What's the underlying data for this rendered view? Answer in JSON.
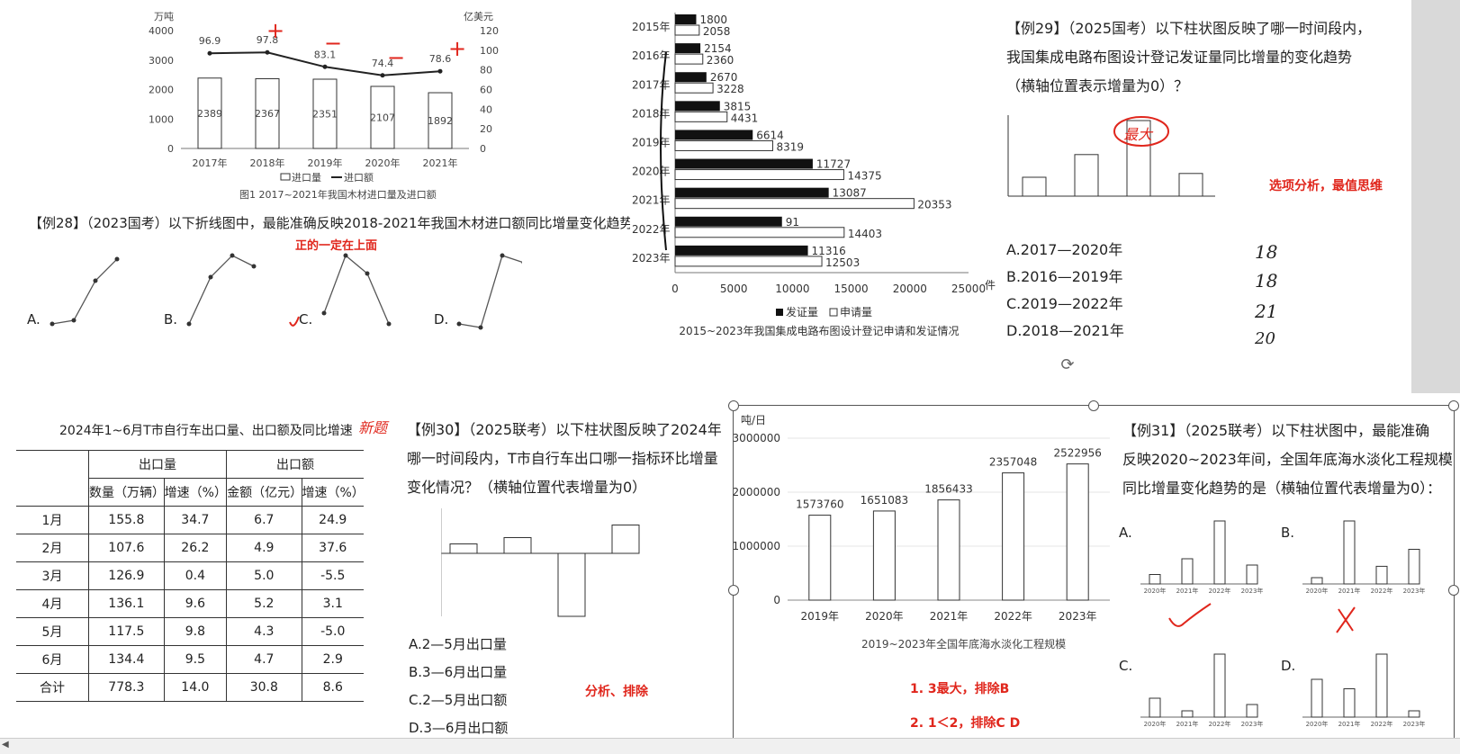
{
  "chart_data": [
    {
      "type": "bar",
      "title": "图1  2017~2021年我国木材进口量及进口额",
      "categories": [
        "2017年",
        "2018年",
        "2019年",
        "2020年",
        "2021年"
      ],
      "series": [
        {
          "name": "进口量",
          "type": "bar",
          "values": [
            2389,
            2367,
            2351,
            2107,
            1892
          ]
        },
        {
          "name": "进口额",
          "type": "line",
          "values": [
            96.9,
            97.8,
            83.1,
            74.4,
            78.6
          ]
        }
      ],
      "ylabel": "万吨",
      "y2label": "亿美元",
      "ylim": [
        0,
        4000
      ],
      "y2lim": [
        0,
        120
      ],
      "yticks": [
        "4000",
        "3000",
        "2000",
        "1000",
        "0"
      ],
      "y2ticks": [
        "120",
        "100",
        "80",
        "60",
        "40",
        "20",
        "0"
      ]
    },
    {
      "type": "bar",
      "orientation": "horizontal",
      "title": "2015~2023年我国集成电路布图设计登记申请和发证情况",
      "categories": [
        "2015年",
        "2016年",
        "2017年",
        "2018年",
        "2019年",
        "2020年",
        "2021年",
        "2022年",
        "2023年"
      ],
      "series": [
        {
          "name": "发证量",
          "values": [
            1800,
            2154,
            2670,
            3815,
            6614,
            11727,
            13087,
            9106,
            11316
          ]
        },
        {
          "name": "申请量",
          "values": [
            2058,
            2360,
            3228,
            4431,
            8319,
            14375,
            20353,
            14403,
            12503
          ]
        }
      ],
      "xlim": [
        0,
        25000
      ],
      "xticks": [
        "0",
        "5000",
        "10000",
        "15000",
        "20000",
        "25000"
      ],
      "unit": "件",
      "visible_labels_2022": "91"
    },
    {
      "type": "table",
      "title": "2024年1~6月T市自行车出口量、出口额及同比增速",
      "groups": [
        "出口量",
        "出口额"
      ],
      "columns": [
        "数量（万辆）",
        "增速（%）",
        "金额（亿元）",
        "增速（%）"
      ],
      "rows": [
        {
          "month": "1月",
          "values": [
            "155.8",
            "34.7",
            "6.7",
            "24.9"
          ]
        },
        {
          "month": "2月",
          "values": [
            "107.6",
            "26.2",
            "4.9",
            "37.6"
          ]
        },
        {
          "month": "3月",
          "values": [
            "126.9",
            "0.4",
            "5.0",
            "-5.5"
          ]
        },
        {
          "month": "4月",
          "values": [
            "136.1",
            "9.6",
            "5.2",
            "3.1"
          ]
        },
        {
          "month": "5月",
          "values": [
            "117.5",
            "9.8",
            "4.3",
            "-5.0"
          ]
        },
        {
          "month": "6月",
          "values": [
            "134.4",
            "9.5",
            "4.7",
            "2.9"
          ]
        },
        {
          "month": "合计",
          "values": [
            "778.3",
            "14.0",
            "30.8",
            "8.6"
          ]
        }
      ]
    },
    {
      "type": "bar",
      "title": "2019~2023年全国年底海水淡化工程规模",
      "categories": [
        "2019年",
        "2020年",
        "2021年",
        "2022年",
        "2023年"
      ],
      "values": [
        1573760,
        1651083,
        1856433,
        2357048,
        2522956
      ],
      "ylabel": "吨/日",
      "ylim": [
        0,
        3000000
      ],
      "yticks": [
        "3000000",
        "2000000",
        "1000000",
        "0"
      ]
    }
  ],
  "q28": {
    "text": "【例28】（2023国考）以下折线图中，最能准确反映2018-2021年我国木材进口额同比增量变化趋势的是：",
    "note": "正的一定在上面",
    "options": [
      "A.",
      "B.",
      "C.",
      "D."
    ],
    "marks": [
      "+",
      "−",
      "−",
      "+"
    ],
    "shapes": [
      [
        0.95,
        0.9,
        0.35,
        0.05
      ],
      [
        0.95,
        0.3,
        0.0,
        0.15
      ],
      [
        0.8,
        0.0,
        0.25,
        0.95
      ],
      [
        0.95,
        1.0,
        0.0,
        0.1
      ]
    ]
  },
  "q29": {
    "lines": [
      "【例29】（2025国考）以下柱状图反映了哪一时间段内，",
      "我国集成电路布图设计登记发证量同比增量的变化趋势",
      "（横轴位置表示增量为0）？"
    ],
    "options": [
      "A.2017—2020年",
      "B.2016—2019年",
      "C.2019—2022年",
      "D.2018—2021年"
    ],
    "note": "选项分析，最值思维",
    "annot_max": "最大",
    "handwritten": [
      "18",
      "18",
      "21",
      "20"
    ],
    "bars": [
      0.25,
      0.55,
      1.0,
      0.3
    ]
  },
  "q30": {
    "tag": "新题",
    "lines": [
      "【例30】（2025联考）以下柱状图反映了2024年",
      "哪一时间段内，T市自行车出口哪一指标环比增量",
      "变化情况？（横轴位置代表增量为0）"
    ],
    "options": [
      "A.2—5月出口量",
      "B.3—6月出口量",
      "C.2—5月出口额",
      "D.3—6月出口额"
    ],
    "note": "分析、排除",
    "bars": [
      0.15,
      0.25,
      -1.0,
      0.45
    ]
  },
  "q31": {
    "lines": [
      "【例31】（2025联考）以下柱状图中，最能准确",
      "反映2020~2023年间，全国年底海水淡化工程规模",
      "同比增量变化趋势的是（横轴位置代表增量为0）："
    ],
    "notes": [
      "1. 3最大，排除B",
      "2. 1＜2，排除C D"
    ],
    "options": [
      "A.",
      "B.",
      "C.",
      "D."
    ],
    "years": [
      "2020年",
      "2021年",
      "2022年",
      "2023年"
    ],
    "bars": {
      "A": [
        0.15,
        0.4,
        1.0,
        0.3
      ],
      "B": [
        0.1,
        1.0,
        0.28,
        0.55
      ],
      "C": [
        0.3,
        0.1,
        1.0,
        0.2
      ],
      "D": [
        0.6,
        0.45,
        1.0,
        0.1
      ]
    }
  }
}
